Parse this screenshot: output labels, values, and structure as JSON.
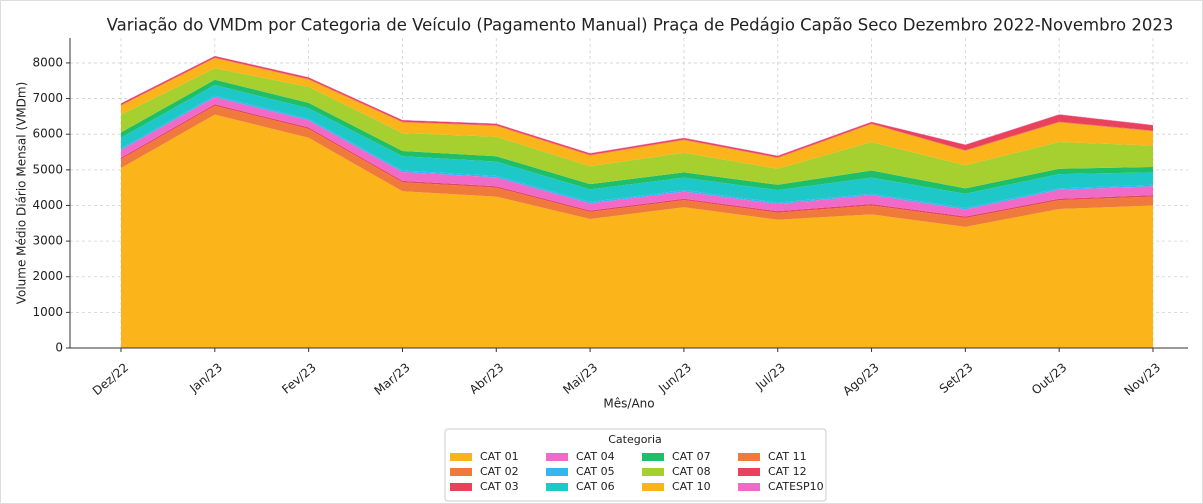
{
  "chart_data": {
    "type": "stacked_area",
    "title": "Variação do VMDm por Categoria de Veículo (Pagamento Manual) Praça de Pedágio Capão Seco Dezembro 2022-Novembro 2023",
    "xlabel": "Mês/Ano",
    "ylabel": "Volume Médio Diário Mensal (VMDm)",
    "legend_title": "Categoria",
    "legend": "bottom-center",
    "grid": true,
    "categories": [
      "Dez/22",
      "Jan/23",
      "Fev/23",
      "Mar/23",
      "Abr/23",
      "Mai/23",
      "Jun/23",
      "Jul/23",
      "Ago/23",
      "Set/23",
      "Out/23",
      "Nov/23"
    ],
    "ylim": [
      0,
      8700
    ],
    "yticks": [
      0,
      1000,
      2000,
      3000,
      4000,
      5000,
      6000,
      7000,
      8000
    ],
    "series": [
      {
        "name": "CAT 01",
        "color": "#fbb41a",
        "values": [
          5050,
          6550,
          5900,
          4400,
          4250,
          3620,
          3950,
          3600,
          3750,
          3400,
          3900,
          4000
        ]
      },
      {
        "name": "CAT 02",
        "color": "#f07a3c",
        "values": [
          250,
          250,
          250,
          250,
          250,
          200,
          200,
          200,
          250,
          250,
          250,
          250
        ]
      },
      {
        "name": "CAT 03",
        "color": "#e8435a",
        "values": [
          40,
          40,
          40,
          40,
          40,
          40,
          40,
          40,
          40,
          40,
          40,
          40
        ]
      },
      {
        "name": "CAT 04",
        "color": "#f06ac8",
        "values": [
          220,
          200,
          200,
          250,
          250,
          200,
          200,
          200,
          250,
          200,
          250,
          250
        ]
      },
      {
        "name": "CAT 05",
        "color": "#36b5f0",
        "values": [
          40,
          40,
          40,
          40,
          40,
          40,
          40,
          40,
          40,
          40,
          40,
          40
        ]
      },
      {
        "name": "CAT 06",
        "color": "#1ec8c8",
        "values": [
          300,
          300,
          300,
          400,
          400,
          350,
          350,
          350,
          450,
          400,
          400,
          350
        ]
      },
      {
        "name": "CAT 07",
        "color": "#1fbf6a",
        "values": [
          150,
          150,
          150,
          150,
          150,
          150,
          150,
          150,
          200,
          150,
          150,
          150
        ]
      },
      {
        "name": "CAT 08",
        "color": "#a6d030",
        "values": [
          500,
          320,
          450,
          500,
          550,
          500,
          550,
          450,
          800,
          650,
          750,
          600
        ]
      },
      {
        "name": "CAT 10",
        "color": "#fbb41a",
        "values": [
          250,
          280,
          200,
          300,
          300,
          300,
          350,
          300,
          500,
          400,
          550,
          400
        ]
      },
      {
        "name": "CAT 11",
        "color": "#f07a3c",
        "values": [
          20,
          20,
          20,
          20,
          20,
          20,
          20,
          20,
          20,
          20,
          20,
          20
        ]
      },
      {
        "name": "CAT 12",
        "color": "#e8435a",
        "values": [
          40,
          40,
          40,
          40,
          40,
          40,
          40,
          40,
          40,
          150,
          200,
          150
        ]
      },
      {
        "name": "CATESP10",
        "color": "#f06ac8",
        "values": [
          10,
          10,
          10,
          10,
          10,
          10,
          10,
          10,
          10,
          10,
          10,
          10
        ]
      }
    ]
  }
}
